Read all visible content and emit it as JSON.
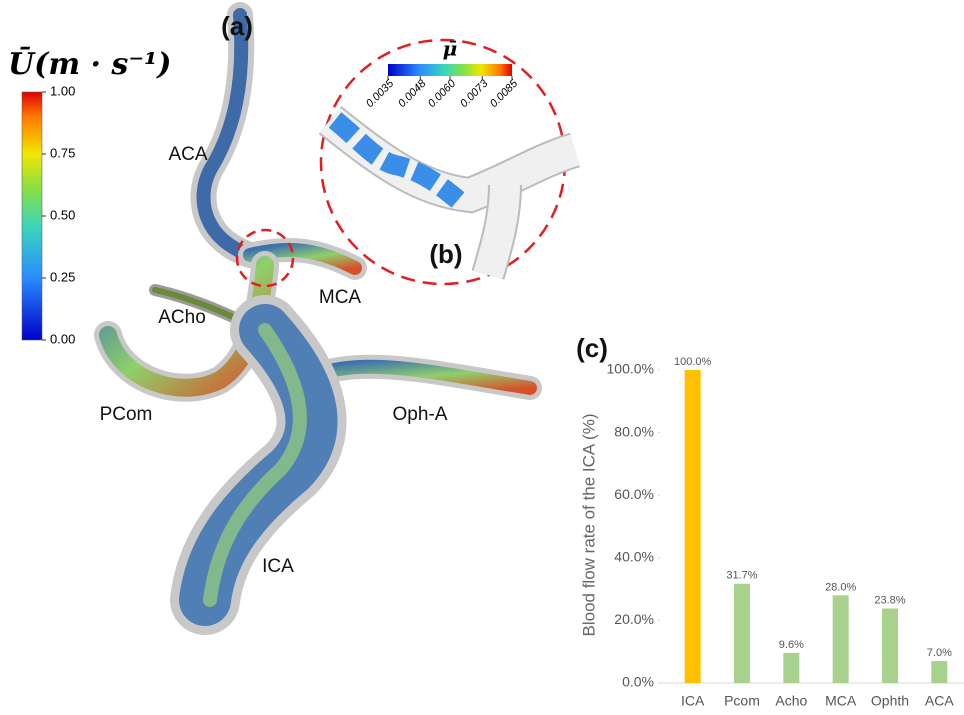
{
  "panel_a": {
    "label": "(a)",
    "colorbar": {
      "title": "Ū(m · s⁻¹)",
      "lim": [
        0,
        1
      ],
      "ticks": [
        {
          "value": 0,
          "label": "0.00"
        },
        {
          "value": 0.25,
          "label": "0.25"
        },
        {
          "value": 0.5,
          "label": "0.50"
        },
        {
          "value": 0.75,
          "label": "0.75"
        },
        {
          "value": 1,
          "label": "1.00"
        }
      ]
    },
    "vessel_labels": [
      "ACA",
      "MCA",
      "ACho",
      "PCom",
      "Oph-A",
      "ICA"
    ]
  },
  "panel_b": {
    "label": "(b)",
    "colorbar": {
      "title": "μ̄",
      "lim": [
        0.0035,
        0.0085
      ],
      "ticks": [
        0.0035,
        0.0048,
        {
          "value": 0.006,
          "label": "0.0060"
        },
        0.0073,
        0.0085
      ]
    }
  },
  "chart_data": {
    "type": "bar",
    "label": "(c)",
    "y_label": "Blood flow rate of the ICA (%)",
    "categories": [
      "ICA",
      "Pcom",
      "Acho",
      "MCA",
      "Ophth",
      "ACA"
    ],
    "values": [
      100,
      31.7,
      9.6,
      28.0,
      23.8,
      7.0
    ],
    "value_labels": [
      "100.0%",
      "31.7%",
      "9.6%",
      "28.0%",
      "23.8%",
      "7.0%"
    ],
    "colors": [
      "#ffc000",
      "#a9d18e",
      "#a9d18e",
      "#a9d18e",
      "#a9d18e",
      "#a9d18e"
    ],
    "ylim": [
      0,
      100
    ],
    "yticks": [
      {
        "value": 0,
        "label": "0.0%"
      },
      {
        "value": 20,
        "label": "20.0%"
      },
      {
        "value": 40,
        "label": "40.0%"
      },
      {
        "value": 60,
        "label": "60.0%"
      },
      {
        "value": 80,
        "label": "80.0%"
      },
      {
        "value": 100,
        "label": "100.0%"
      }
    ]
  }
}
